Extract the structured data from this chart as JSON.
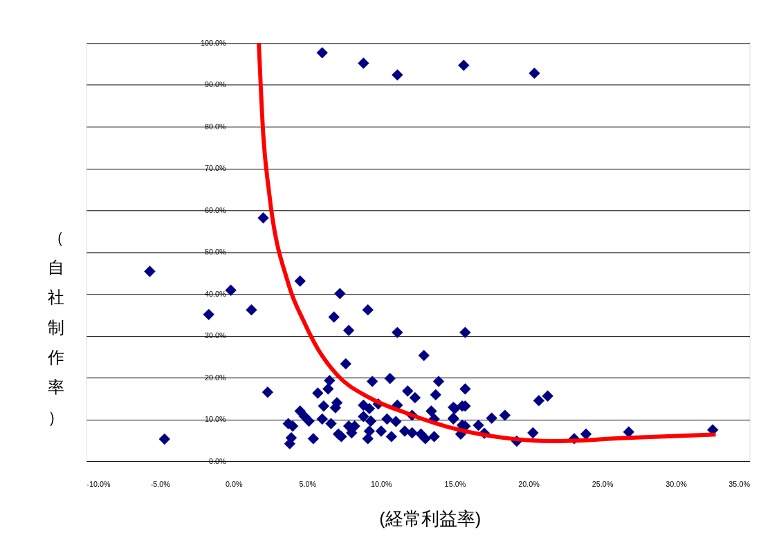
{
  "chart_data": {
    "type": "scatter",
    "xlabel": "(経常利益率)",
    "ylabel": "（自社制作率）",
    "xlim": [
      -10,
      35
    ],
    "ylim": [
      0,
      100
    ],
    "xticks": [
      {
        "value": -10,
        "label": "-10.0%"
      },
      {
        "value": -5,
        "label": "-5.0%"
      },
      {
        "value": 0,
        "label": "0.0%"
      },
      {
        "value": 5,
        "label": "5.0%"
      },
      {
        "value": 10,
        "label": "10.0%"
      },
      {
        "value": 15,
        "label": "15.0%"
      },
      {
        "value": 20,
        "label": "20.0%"
      },
      {
        "value": 25,
        "label": "25.0%"
      },
      {
        "value": 30,
        "label": "30.0%"
      },
      {
        "value": 35,
        "label": "35.0%"
      }
    ],
    "yticks": [
      {
        "value": 0,
        "label": "0.0%"
      },
      {
        "value": 10,
        "label": "10.0%"
      },
      {
        "value": 20,
        "label": "20.0%"
      },
      {
        "value": 30,
        "label": "30.0%"
      },
      {
        "value": 40,
        "label": "40.0%"
      },
      {
        "value": 50,
        "label": "50.0%"
      },
      {
        "value": 60,
        "label": "60.0%"
      },
      {
        "value": 70,
        "label": "70.0%"
      },
      {
        "value": 80,
        "label": "80.0%"
      },
      {
        "value": 90,
        "label": "90.0%"
      },
      {
        "value": 100,
        "label": "100.0%"
      }
    ],
    "grid": "y",
    "series": [
      {
        "marker": "diamond",
        "color": "#000080",
        "x": [
          6.0,
          8.8,
          11.1,
          15.6,
          20.4,
          2.0,
          -5.7,
          -1.7,
          -0.2,
          1.2,
          4.5,
          7.2,
          6.8,
          9.1,
          7.8,
          11.1,
          15.7,
          -4.7,
          2.3,
          12.9,
          7.6,
          5.7,
          6.4,
          6.5,
          7.0,
          6.9,
          6.1,
          4.5,
          4.8,
          3.7,
          4.0,
          3.9,
          3.8,
          5.1,
          5.4,
          6.0,
          6.6,
          7.1,
          7.3,
          7.8,
          8.2,
          8.0,
          9.4,
          10.6,
          8.8,
          9.2,
          9.8,
          8.8,
          9.3,
          9.2,
          9.1,
          10.0,
          10.4,
          10.7,
          11.0,
          11.1,
          11.8,
          12.3,
          11.6,
          12.1,
          12.1,
          12.7,
          13.0,
          13.4,
          13.6,
          13.6,
          13.7,
          13.9,
          15.0,
          14.9,
          15.7,
          15.7,
          15.7,
          15.4,
          14.9,
          15.5,
          14.9,
          15.5,
          16.6,
          17.0,
          17.5,
          18.4,
          19.2,
          20.3,
          20.7,
          21.3,
          23.1,
          23.9,
          26.8,
          32.5
        ],
        "values": [
          97.7,
          95.2,
          92.4,
          94.7,
          92.8,
          58.2,
          45.4,
          35.1,
          40.9,
          36.2,
          43.1,
          40.1,
          34.5,
          36.2,
          31.3,
          30.8,
          30.8,
          5.3,
          16.5,
          25.3,
          23.3,
          16.3,
          17.3,
          19.3,
          14.0,
          12.8,
          13.2,
          12.0,
          10.7,
          9.0,
          8.4,
          5.6,
          4.2,
          9.6,
          5.4,
          10.1,
          9.0,
          6.5,
          5.9,
          8.4,
          8.4,
          6.8,
          19.1,
          19.8,
          13.4,
          12.6,
          13.7,
          10.7,
          9.6,
          7.2,
          5.4,
          7.2,
          10.1,
          5.9,
          9.5,
          13.4,
          16.8,
          15.2,
          7.2,
          6.8,
          11.0,
          6.5,
          5.4,
          12.0,
          10.1,
          5.9,
          15.9,
          19.1,
          12.6,
          10.1,
          17.3,
          13.2,
          8.4,
          6.5,
          12.9,
          13.2,
          10.3,
          8.6,
          8.6,
          6.7,
          10.3,
          11.0,
          4.8,
          6.8,
          14.5,
          15.6,
          5.4,
          6.5,
          7.0,
          7.5
        ]
      },
      {
        "type": "line",
        "color": "#ff0000",
        "x": [
          1.7,
          2.0,
          2.4,
          3.7,
          4.8,
          5.7,
          7.0,
          9.2,
          11.8,
          15.3,
          18.8,
          21.9,
          26.7,
          32.7
        ],
        "values": [
          100,
          78.2,
          64.2,
          42.5,
          33.1,
          26.9,
          20.7,
          15.2,
          11.4,
          7.5,
          5.4,
          4.8,
          5.6,
          6.4
        ]
      }
    ]
  }
}
